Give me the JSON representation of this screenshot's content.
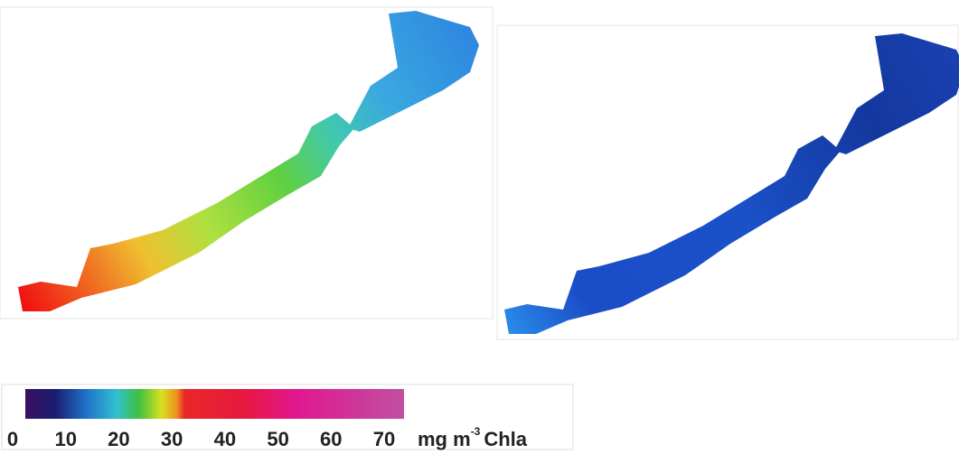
{
  "colorbar": {
    "lim": [
      0,
      70
    ],
    "ticks": [
      0,
      10,
      20,
      30,
      40,
      50,
      60,
      70
    ],
    "unit": "mg m",
    "unit_exponent": "-3",
    "variable": "Chla"
  }
}
